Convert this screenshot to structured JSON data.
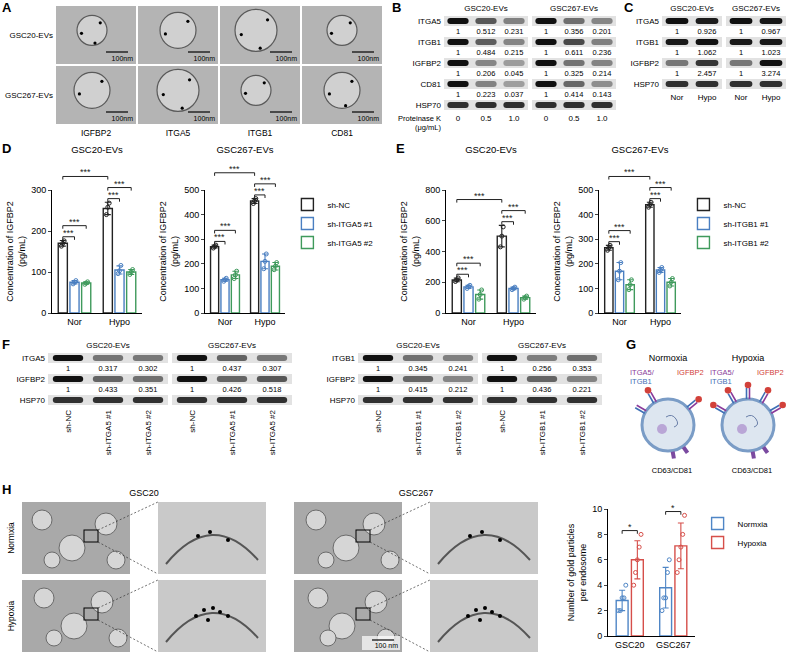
{
  "chart_data": [
    {
      "type": "bar",
      "panel": "D",
      "title": "GSC20-EVs",
      "ylabel": "Concentration of IGFBP2 (pg/mL)",
      "categories": [
        "Nor",
        "Hypo"
      ],
      "series": [
        {
          "name": "sh-NC",
          "color": "#222222",
          "values": [
            170,
            255
          ],
          "errors": [
            7,
            15
          ],
          "points": [
            [
              163,
              170,
              176
            ],
            [
              240,
              258,
              268
            ]
          ]
        },
        {
          "name": "sh-ITGA5 #1",
          "color": "#4a7fc1",
          "values": [
            75,
            105
          ],
          "errors": [
            4,
            10
          ],
          "points": [
            [
              71,
              75,
              79
            ],
            [
              96,
              103,
              116
            ]
          ]
        },
        {
          "name": "sh-ITGA5 #2",
          "color": "#3f9a5c",
          "values": [
            73,
            100
          ],
          "errors": [
            3,
            6
          ],
          "points": [
            [
              70,
              73,
              76
            ],
            [
              94,
              100,
              106
            ]
          ]
        }
      ],
      "ylim": [
        0,
        300
      ],
      "yticks": [
        0,
        100,
        200,
        300
      ],
      "grid": false,
      "marker": "circle-open",
      "significance": [
        {
          "a": [
            0,
            0
          ],
          "b": [
            0,
            1
          ],
          "label": "***"
        },
        {
          "a": [
            0,
            0
          ],
          "b": [
            0,
            2
          ],
          "label": "***"
        },
        {
          "a": [
            1,
            0
          ],
          "b": [
            1,
            1
          ],
          "label": "***"
        },
        {
          "a": [
            1,
            0
          ],
          "b": [
            1,
            2
          ],
          "label": "***"
        },
        {
          "a": [
            0,
            0
          ],
          "b": [
            1,
            0
          ],
          "label": "***"
        }
      ]
    },
    {
      "type": "bar",
      "title": "GSC267-EVs",
      "ylabel": "Concentration of IGFBP2 (pg/mL)",
      "categories": [
        "Nor",
        "Hypo"
      ],
      "series": [
        {
          "name": "sh-NC",
          "color": "#222222",
          "values": [
            270,
            455
          ],
          "errors": [
            6,
            10
          ],
          "points": [
            [
              264,
              270,
              276
            ],
            [
              445,
              455,
              465
            ]
          ]
        },
        {
          "name": "sh-ITGA5 #1",
          "color": "#4a7fc1",
          "values": [
            135,
            210
          ],
          "errors": [
            6,
            30
          ],
          "points": [
            [
              129,
              135,
              141
            ],
            [
              180,
              210,
              240
            ]
          ]
        },
        {
          "name": "sh-ITGA5 #2",
          "color": "#3f9a5c",
          "values": [
            155,
            190
          ],
          "errors": [
            15,
            15
          ],
          "points": [
            [
              140,
              155,
              170
            ],
            [
              176,
              190,
              205
            ]
          ]
        }
      ],
      "ylim": [
        0,
        500
      ],
      "yticks": [
        0,
        100,
        200,
        300,
        400,
        500
      ],
      "grid": false,
      "marker": "circle-open",
      "legend": "right",
      "significance": [
        {
          "a": [
            0,
            0
          ],
          "b": [
            0,
            1
          ],
          "label": "***"
        },
        {
          "a": [
            0,
            0
          ],
          "b": [
            0,
            2
          ],
          "label": "***"
        },
        {
          "a": [
            1,
            0
          ],
          "b": [
            1,
            1
          ],
          "label": "***"
        },
        {
          "a": [
            1,
            0
          ],
          "b": [
            1,
            2
          ],
          "label": "***"
        },
        {
          "a": [
            0,
            0
          ],
          "b": [
            1,
            0
          ],
          "label": "***"
        }
      ]
    },
    {
      "type": "bar",
      "panel": "E",
      "title": "GSC20-EVs",
      "ylabel": "Concentration of IGFBP2 (pg/mL)",
      "categories": [
        "Nor",
        "Hypo"
      ],
      "series": [
        {
          "name": "sh-NC",
          "color": "#222222",
          "values": [
            215,
            500
          ],
          "errors": [
            12,
            70
          ],
          "points": [
            [
              205,
              215,
              228
            ],
            [
              430,
              500,
              560
            ]
          ]
        },
        {
          "name": "sh-ITGB1 #1",
          "color": "#4a7fc1",
          "values": [
            170,
            160
          ],
          "errors": [
            10,
            8
          ],
          "points": [
            [
              160,
              172,
              180
            ],
            [
              152,
              160,
              168
            ]
          ]
        },
        {
          "name": "sh-ITGB1 #2",
          "color": "#3f9a5c",
          "values": [
            120,
            100
          ],
          "errors": [
            30,
            10
          ],
          "points": [
            [
              90,
              120,
              150
            ],
            [
              90,
              100,
              110
            ]
          ]
        }
      ],
      "ylim": [
        0,
        800
      ],
      "yticks": [
        0,
        200,
        400,
        600,
        800
      ],
      "grid": false,
      "marker": "circle-open",
      "significance": [
        {
          "a": [
            0,
            0
          ],
          "b": [
            0,
            1
          ],
          "label": "***"
        },
        {
          "a": [
            0,
            0
          ],
          "b": [
            0,
            2
          ],
          "label": "***"
        },
        {
          "a": [
            1,
            0
          ],
          "b": [
            1,
            1
          ],
          "label": "***"
        },
        {
          "a": [
            1,
            0
          ],
          "b": [
            1,
            2
          ],
          "label": "***"
        },
        {
          "a": [
            0,
            0
          ],
          "b": [
            1,
            0
          ],
          "label": "***"
        }
      ]
    },
    {
      "type": "bar",
      "title": "GSC267-EVs",
      "ylabel": "Concentration of IGFBP2 (pg/mL)",
      "categories": [
        "Nor",
        "Hypo"
      ],
      "series": [
        {
          "name": "sh-NC",
          "color": "#222222",
          "values": [
            265,
            440
          ],
          "errors": [
            10,
            10
          ],
          "points": [
            [
              255,
              265,
              275
            ],
            [
              430,
              440,
              450
            ]
          ]
        },
        {
          "name": "sh-ITGB1 #1",
          "color": "#4a7fc1",
          "values": [
            170,
            175
          ],
          "errors": [
            35,
            10
          ],
          "points": [
            [
              135,
              170,
              205
            ],
            [
              165,
              175,
              185
            ]
          ]
        },
        {
          "name": "sh-ITGB1 #2",
          "color": "#3f9a5c",
          "values": [
            115,
            125
          ],
          "errors": [
            20,
            15
          ],
          "points": [
            [
              95,
              115,
              135
            ],
            [
              110,
              125,
              140
            ]
          ]
        }
      ],
      "ylim": [
        0,
        500
      ],
      "yticks": [
        0,
        100,
        200,
        300,
        400,
        500
      ],
      "grid": false,
      "marker": "circle-open",
      "legend": "right",
      "significance": [
        {
          "a": [
            0,
            0
          ],
          "b": [
            0,
            1
          ],
          "label": "***"
        },
        {
          "a": [
            0,
            0
          ],
          "b": [
            0,
            2
          ],
          "label": "***"
        },
        {
          "a": [
            1,
            0
          ],
          "b": [
            1,
            1
          ],
          "label": "***"
        },
        {
          "a": [
            1,
            0
          ],
          "b": [
            1,
            2
          ],
          "label": "***"
        },
        {
          "a": [
            0,
            0
          ],
          "b": [
            1,
            0
          ],
          "label": "***"
        }
      ]
    },
    {
      "type": "bar",
      "ylabel": "Number of gold particles per endosome",
      "categories": [
        "GSC20",
        "GSC267"
      ],
      "series": [
        {
          "name": "Normxia",
          "color": "#4f86c6",
          "values": [
            2.8,
            3.8
          ],
          "errors": [
            0.8,
            1.6
          ],
          "points": [
            [
              2,
              2,
              3,
              3,
              4
            ],
            [
              2,
              3,
              3,
              5,
              6
            ]
          ]
        },
        {
          "name": "Hypoxia",
          "color": "#d64f4a",
          "values": [
            6.0,
            7.1
          ],
          "errors": [
            1.5,
            1.8
          ],
          "points": [
            [
              4,
              5,
              6,
              7,
              8
            ],
            [
              5,
              6,
              7,
              8,
              9.5
            ]
          ]
        }
      ],
      "ylim": [
        0,
        10
      ],
      "yticks": [
        0,
        2,
        4,
        6,
        8,
        10
      ],
      "grid": false,
      "marker": "circle-open",
      "legend": "right",
      "significance": [
        {
          "a": [
            0,
            0
          ],
          "b": [
            0,
            1
          ],
          "label": "*"
        },
        {
          "a": [
            1,
            0
          ],
          "b": [
            1,
            1
          ],
          "label": "*"
        }
      ]
    }
  ],
  "figure": {
    "A": {
      "letter": "A",
      "rows": [
        "GSC20-EVs",
        "GSC267-EVs"
      ],
      "columns": [
        "IGFBP2",
        "ITGA5",
        "ITGB1",
        "CD81"
      ],
      "scale_bar": "100nm"
    },
    "B": {
      "letter": "B",
      "groups": [
        "GSC20-EVs",
        "GSC267-EVs"
      ],
      "lanes": [
        "0",
        "0.5",
        "1.0"
      ],
      "lane_title": "Proteinase K (μg/mL)",
      "rows": [
        {
          "name": "ITGA5",
          "values": [
            1,
            0.512,
            0.231,
            1,
            0.356,
            0.201
          ]
        },
        {
          "name": "ITGB1",
          "values": [
            1,
            0.484,
            0.215,
            1,
            0.611,
            0.236
          ]
        },
        {
          "name": "IGFBP2",
          "values": [
            1,
            0.206,
            0.045,
            1,
            0.325,
            0.214
          ]
        },
        {
          "name": "CD81",
          "values": [
            1,
            0.223,
            0.037,
            1,
            0.414,
            0.143
          ]
        },
        {
          "name": "HSP70"
        }
      ]
    },
    "C": {
      "letter": "C",
      "groups": [
        "GSC20-EVs",
        "GSC267-EVs"
      ],
      "lanes": [
        "Nor",
        "Hypo"
      ],
      "rows": [
        {
          "name": "ITGA5",
          "values": [
            1,
            0.926,
            1,
            0.967
          ]
        },
        {
          "name": "ITGB1",
          "values": [
            1,
            1.062,
            1,
            1.023
          ]
        },
        {
          "name": "IGFBP2",
          "values": [
            1,
            2.457,
            1,
            3.274
          ]
        },
        {
          "name": "HSP70"
        }
      ]
    },
    "F": {
      "letter": "F",
      "blots": [
        {
          "groups": [
            "GSC20-EVs",
            "GSC267-EVs"
          ],
          "lanes": [
            "sh-NC",
            "sh-ITGA5 #1",
            "sh-ITGA5 #2"
          ],
          "rows": [
            {
              "name": "ITGA5",
              "values": [
                1,
                0.317,
                0.302,
                1,
                0.437,
                0.307
              ]
            },
            {
              "name": "IGFBP2",
              "values": [
                1,
                0.433,
                0.351,
                1,
                0.426,
                0.518
              ]
            },
            {
              "name": "HSP70"
            }
          ]
        },
        {
          "groups": [
            "GSC20-EVs",
            "GSC267-EVs"
          ],
          "lanes": [
            "sh-NC",
            "sh-ITGB1 #1",
            "sh-ITGB1 #2"
          ],
          "rows": [
            {
              "name": "ITGB1",
              "values": [
                1,
                0.345,
                0.241,
                1,
                0.256,
                0.353
              ]
            },
            {
              "name": "IGFBP2",
              "values": [
                1,
                0.415,
                0.212,
                1,
                0.436,
                0.221
              ]
            },
            {
              "name": "HSP70"
            }
          ]
        }
      ]
    },
    "G": {
      "letter": "G",
      "states": [
        "Normoxia",
        "Hypoxia"
      ],
      "integrin_label": [
        "ITGA5/",
        "ITGB1"
      ],
      "ligand_label": "IGFBP2",
      "marker_label": "CD63/CD81"
    },
    "H": {
      "letter": "H",
      "columns": [
        "GSC20",
        "GSC267"
      ],
      "rows": [
        "Normxia",
        "Hypoxia"
      ],
      "scale_bar": "100 nm"
    }
  }
}
